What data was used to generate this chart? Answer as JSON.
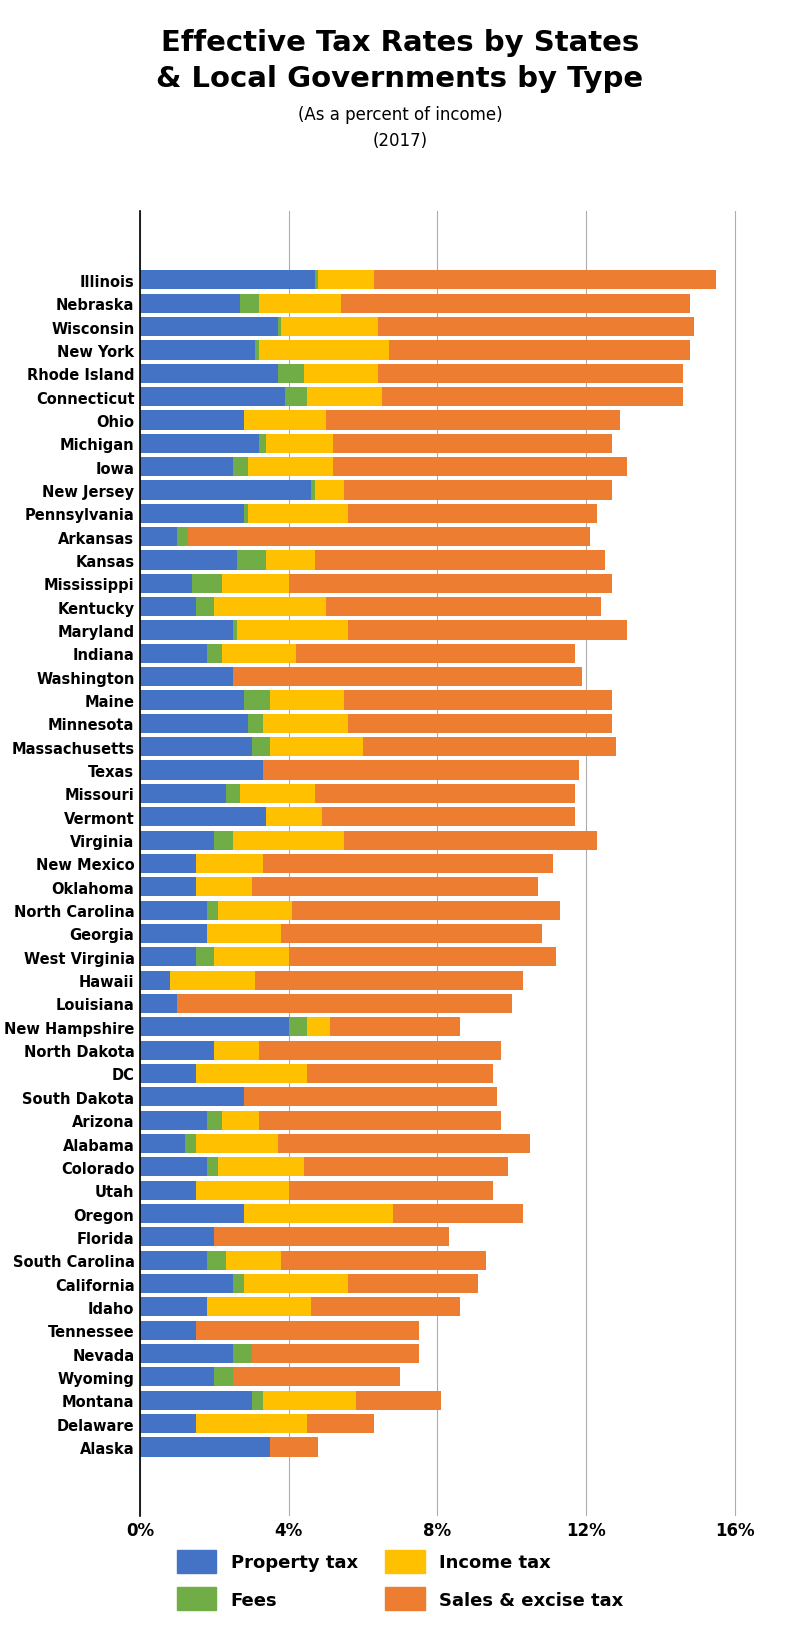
{
  "title_line1": "Effective Tax Rates by States",
  "title_line2": "& Local Governments by Type",
  "subtitle1": "(As a percent of income)",
  "subtitle2": "(2017)",
  "colors": {
    "property_tax": "#4472C4",
    "fees": "#70AD47",
    "income_tax": "#FFC000",
    "sales_excise": "#ED7D31"
  },
  "states": [
    "Illinois",
    "Nebraska",
    "Wisconsin",
    "New York",
    "Rhode Island",
    "Connecticut",
    "Ohio",
    "Michigan",
    "Iowa",
    "New Jersey",
    "Pennsylvania",
    "Arkansas",
    "Kansas",
    "Mississippi",
    "Kentucky",
    "Maryland",
    "Indiana",
    "Washington",
    "Maine",
    "Minnesota",
    "Massachusetts",
    "Texas",
    "Missouri",
    "Vermont",
    "Virginia",
    "New Mexico",
    "Oklahoma",
    "North Carolina",
    "Georgia",
    "West Virginia",
    "Hawaii",
    "Louisiana",
    "New Hampshire",
    "North Dakota",
    "DC",
    "South Dakota",
    "Arizona",
    "Alabama",
    "Colorado",
    "Utah",
    "Oregon",
    "Florida",
    "South Carolina",
    "California",
    "Idaho",
    "Tennessee",
    "Nevada",
    "Wyoming",
    "Montana",
    "Delaware",
    "Alaska"
  ],
  "property_tax": [
    4.7,
    2.7,
    3.7,
    3.1,
    3.7,
    3.9,
    2.8,
    3.2,
    2.5,
    4.6,
    2.8,
    1.0,
    2.6,
    1.4,
    1.5,
    2.5,
    1.8,
    2.5,
    2.8,
    2.9,
    3.0,
    3.3,
    2.3,
    3.4,
    2.0,
    1.5,
    1.5,
    1.8,
    1.8,
    1.5,
    0.8,
    1.0,
    4.0,
    2.0,
    1.5,
    2.8,
    1.8,
    1.2,
    1.8,
    1.5,
    2.8,
    2.0,
    1.8,
    2.5,
    1.8,
    1.5,
    2.5,
    2.0,
    3.0,
    1.5,
    3.5
  ],
  "fees": [
    0.1,
    0.5,
    0.1,
    0.1,
    0.7,
    0.6,
    0.0,
    0.2,
    0.4,
    0.1,
    0.1,
    0.3,
    0.8,
    0.8,
    0.5,
    0.1,
    0.4,
    0.0,
    0.7,
    0.4,
    0.5,
    0.0,
    0.4,
    0.0,
    0.5,
    0.0,
    0.0,
    0.3,
    0.0,
    0.5,
    0.0,
    0.0,
    0.5,
    0.0,
    0.0,
    0.0,
    0.4,
    0.3,
    0.3,
    0.0,
    0.0,
    0.0,
    0.5,
    0.3,
    0.0,
    0.0,
    0.5,
    0.5,
    0.3,
    0.0,
    0.0
  ],
  "income_tax": [
    1.5,
    2.2,
    2.6,
    3.5,
    2.0,
    2.0,
    2.2,
    1.8,
    2.3,
    0.8,
    2.7,
    0.0,
    1.3,
    1.8,
    3.0,
    3.0,
    2.0,
    0.0,
    2.0,
    2.3,
    2.5,
    0.0,
    2.0,
    1.5,
    3.0,
    1.8,
    1.5,
    2.0,
    2.0,
    2.0,
    2.3,
    0.0,
    0.6,
    1.2,
    3.0,
    0.0,
    1.0,
    2.2,
    2.3,
    2.5,
    4.0,
    0.0,
    1.5,
    2.8,
    2.8,
    0.0,
    0.0,
    0.0,
    2.5,
    3.0,
    0.0
  ],
  "sales_excise": [
    9.2,
    9.4,
    8.5,
    8.1,
    8.2,
    8.1,
    7.9,
    7.5,
    7.9,
    7.2,
    6.7,
    10.8,
    7.8,
    8.7,
    7.4,
    7.5,
    7.5,
    9.4,
    7.2,
    7.1,
    6.8,
    8.5,
    7.0,
    6.8,
    6.8,
    7.8,
    7.7,
    7.2,
    7.0,
    7.2,
    7.2,
    9.0,
    3.5,
    6.5,
    5.0,
    6.8,
    6.5,
    6.8,
    5.5,
    5.5,
    3.5,
    6.3,
    5.5,
    3.5,
    4.0,
    6.0,
    4.5,
    4.5,
    2.3,
    1.8,
    1.3
  ],
  "xlim": [
    0,
    17
  ],
  "xticks": [
    0,
    4,
    8,
    12,
    16
  ],
  "xticklabels": [
    "0%",
    "4%",
    "8%",
    "12%",
    "16%"
  ],
  "figsize": [
    8.0,
    16.31
  ],
  "dpi": 100
}
